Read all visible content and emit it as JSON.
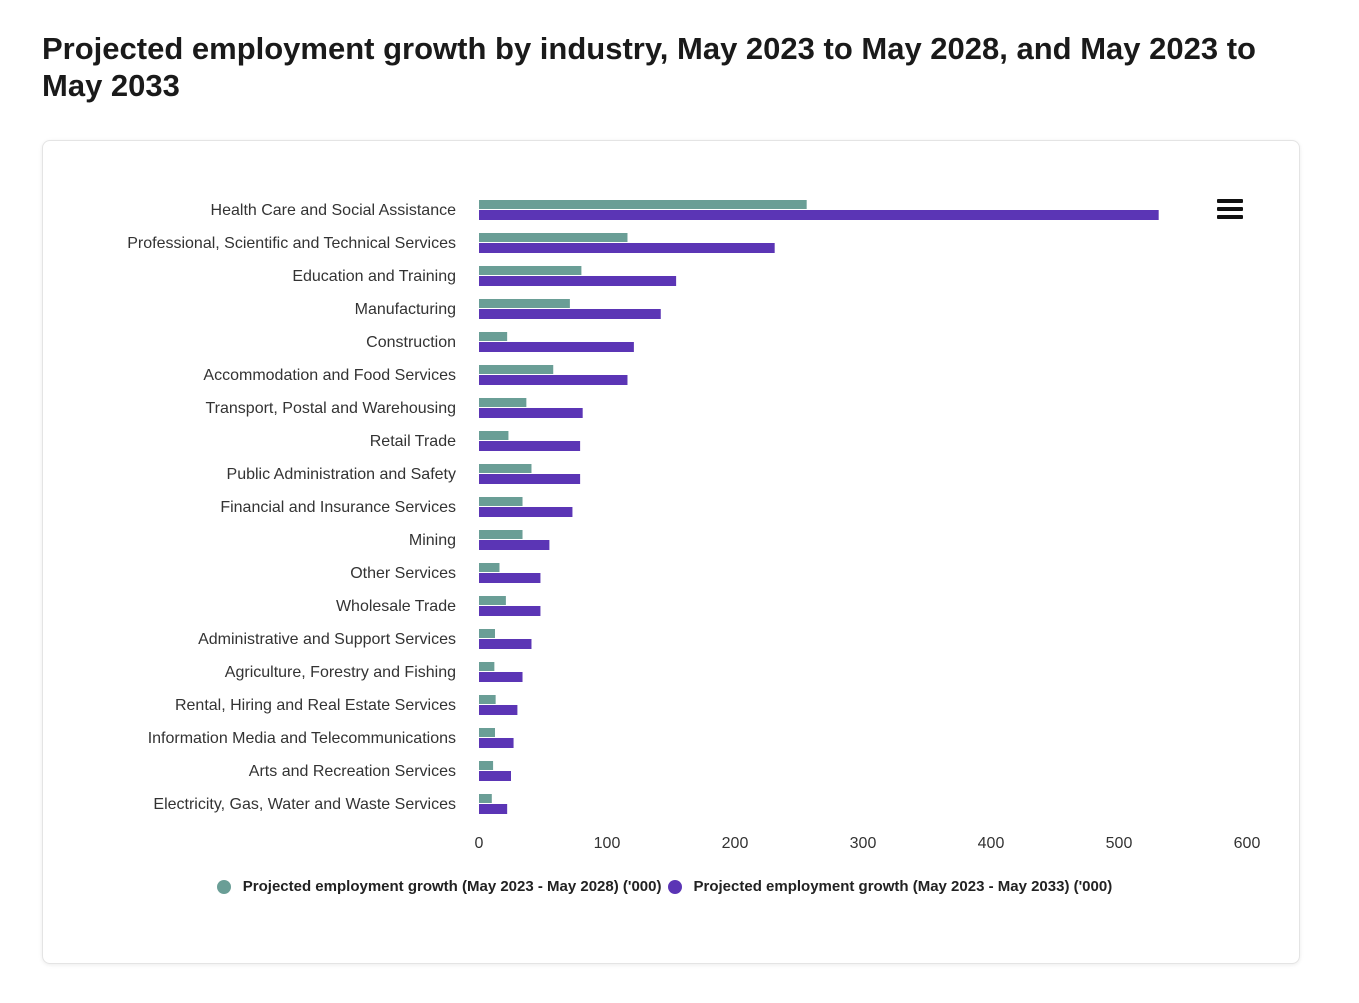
{
  "chart_data": {
    "type": "bar",
    "orientation": "horizontal",
    "title": "Projected employment growth by industry, May 2023 to May 2028, and May 2023 to May 2033",
    "categories": [
      "Health Care and Social Assistance",
      "Professional, Scientific and Technical Services",
      "Education and Training",
      "Manufacturing",
      "Construction",
      "Accommodation and Food Services",
      "Transport, Postal and Warehousing",
      "Retail Trade",
      "Public Administration and Safety",
      "Financial and Insurance Services",
      "Mining",
      "Other Services",
      "Wholesale Trade",
      "Administrative and Support Services",
      "Agriculture, Forestry and Fishing",
      "Rental, Hiring and Real Estate Services",
      "Information Media and Telecommunications",
      "Arts and Recreation Services",
      "Electricity, Gas, Water and Waste Services"
    ],
    "series": [
      {
        "name": "Projected employment growth (May 2023 - May 2028) ('000)",
        "color": "#6a9e96",
        "values": [
          256,
          116,
          80,
          71,
          22,
          58,
          37,
          23,
          41,
          34,
          34,
          16,
          21,
          12.5,
          12,
          13,
          12.5,
          11,
          10
        ]
      },
      {
        "name": "Projected employment growth (May 2023 - May 2033) ('000)",
        "color": "#5b35b5",
        "values": [
          531,
          231,
          154,
          142,
          121,
          116,
          81,
          79,
          79,
          73,
          55,
          48,
          48,
          41,
          34,
          30,
          27,
          25,
          22
        ]
      }
    ],
    "xticks": [
      "0",
      "100",
      "200",
      "300",
      "400",
      "500",
      "600"
    ],
    "xlim": [
      0,
      600
    ],
    "xlabel": "",
    "ylabel": "",
    "grid": false,
    "legend_position": "bottom"
  }
}
